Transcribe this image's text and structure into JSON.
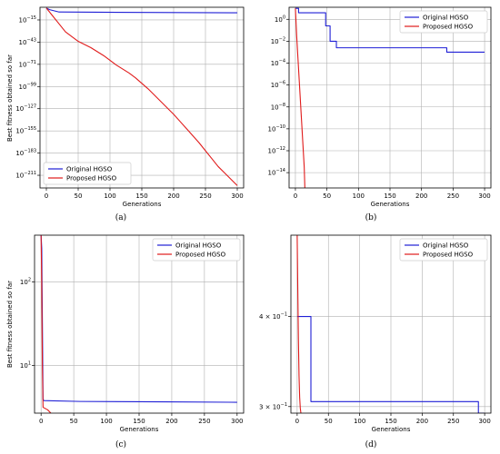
{
  "figure": {
    "captions": [
      "(a)",
      "(b)",
      "(c)",
      "(d)"
    ]
  },
  "chart_data": [
    {
      "type": "line",
      "panel": "a",
      "xlabel": "Generations",
      "ylabel": "Best fitness obtained so far",
      "log_y": true,
      "grid": true,
      "legend_position": "bottom-left",
      "xlim": [
        -10,
        310
      ],
      "ylim": [
        -227,
        1
      ],
      "y_unit": "log10",
      "xticks": [
        0,
        50,
        100,
        150,
        200,
        250,
        300
      ],
      "yticks": [
        {
          "value": -15,
          "base": "10",
          "exp": "−15"
        },
        {
          "value": -43,
          "base": "10",
          "exp": "−43"
        },
        {
          "value": -71,
          "base": "10",
          "exp": "−71"
        },
        {
          "value": -99,
          "base": "10",
          "exp": "−99"
        },
        {
          "value": -127,
          "base": "10",
          "exp": "−127"
        },
        {
          "value": -155,
          "base": "10",
          "exp": "−155"
        },
        {
          "value": -183,
          "base": "10",
          "exp": "−183"
        },
        {
          "value": -211,
          "base": "10",
          "exp": "−211"
        }
      ],
      "series": [
        {
          "name": "Original HGSO",
          "color": "#1f1fd6",
          "step": false,
          "x": [
            0,
            5,
            10,
            20,
            300
          ],
          "y": [
            0,
            -2,
            -3,
            -5,
            -6
          ]
        },
        {
          "name": "Proposed HGSO",
          "color": "#e01b1b",
          "step": false,
          "x": [
            0,
            10,
            20,
            30,
            40,
            50,
            60,
            70,
            80,
            90,
            100,
            110,
            120,
            130,
            140,
            150,
            160,
            170,
            180,
            190,
            200,
            210,
            220,
            230,
            240,
            250,
            260,
            270,
            280,
            290,
            300
          ],
          "y": [
            0,
            -10,
            -20,
            -30,
            -36,
            -42,
            -46,
            -50,
            -55,
            -60,
            -66,
            -72,
            -77,
            -82,
            -88,
            -95,
            -102,
            -110,
            -118,
            -126,
            -134,
            -143,
            -152,
            -161,
            -170,
            -180,
            -190,
            -200,
            -208,
            -216,
            -224
          ]
        }
      ]
    },
    {
      "type": "line",
      "panel": "b",
      "xlabel": "Generations",
      "ylabel": "",
      "log_y": true,
      "grid": true,
      "legend_position": "top-right",
      "xlim": [
        -10,
        310
      ],
      "ylim": [
        -15.4,
        1.1
      ],
      "y_unit": "log10",
      "xticks": [
        0,
        50,
        100,
        150,
        200,
        250,
        300
      ],
      "yticks": [
        {
          "value": 0,
          "base": "10",
          "exp": "0"
        },
        {
          "value": -2,
          "base": "10",
          "exp": "−2"
        },
        {
          "value": -4,
          "base": "10",
          "exp": "−4"
        },
        {
          "value": -6,
          "base": "10",
          "exp": "−6"
        },
        {
          "value": -8,
          "base": "10",
          "exp": "−8"
        },
        {
          "value": -10,
          "base": "10",
          "exp": "−10"
        },
        {
          "value": -12,
          "base": "10",
          "exp": "−12"
        },
        {
          "value": -14,
          "base": "10",
          "exp": "−14"
        }
      ],
      "series": [
        {
          "name": "Original HGSO",
          "color": "#1f1fd6",
          "step": true,
          "x": [
            0,
            5,
            48,
            55,
            65,
            240,
            300
          ],
          "y": [
            1.0,
            0.6,
            -0.6,
            -2.0,
            -2.6,
            -3.0,
            -3.0
          ]
        },
        {
          "name": "Proposed HGSO",
          "color": "#e01b1b",
          "step": false,
          "x": [
            0,
            2,
            4,
            6,
            8,
            10,
            12,
            14,
            15
          ],
          "y": [
            1.0,
            -1.5,
            -3.5,
            -5.5,
            -7.5,
            -9.5,
            -11.5,
            -13.5,
            -15.4
          ]
        }
      ]
    },
    {
      "type": "line",
      "panel": "c",
      "xlabel": "Generations",
      "ylabel": "Best fitness obtained so far",
      "log_y": true,
      "grid": true,
      "legend_position": "top-right",
      "xlim": [
        -10,
        310
      ],
      "ylim": [
        0.43,
        2.56
      ],
      "y_unit": "log10",
      "xticks": [
        0,
        50,
        100,
        150,
        200,
        250,
        300
      ],
      "yticks": [
        {
          "value": 1,
          "base": "10",
          "exp": "1"
        },
        {
          "value": 2,
          "base": "10",
          "exp": "2"
        }
      ],
      "series": [
        {
          "name": "Original HGSO",
          "color": "#1f1fd6",
          "step": false,
          "x": [
            0,
            1,
            2,
            3,
            4,
            60,
            190,
            300
          ],
          "y": [
            2.56,
            2.4,
            1.5,
            0.6,
            0.58,
            0.57,
            0.565,
            0.56
          ]
        },
        {
          "name": "Proposed HGSO",
          "color": "#e01b1b",
          "step": false,
          "x": [
            0,
            1,
            2,
            3,
            10,
            15
          ],
          "y": [
            2.56,
            2.0,
            1.0,
            0.5,
            0.47,
            0.43
          ]
        }
      ]
    },
    {
      "type": "line",
      "panel": "d",
      "xlabel": "Generations",
      "ylabel": "",
      "log_y": true,
      "grid": true,
      "legend_position": "top-right",
      "xlim": [
        -10,
        310
      ],
      "ylim": [
        -0.532,
        -0.285
      ],
      "y_unit": "log10",
      "xticks": [
        0,
        50,
        100,
        150,
        200,
        250,
        300
      ],
      "yticks": [
        {
          "value": -0.3979,
          "base": "4 × 10",
          "exp": "−1"
        },
        {
          "value": -0.5229,
          "base": "3 × 10",
          "exp": "−1"
        }
      ],
      "series": [
        {
          "name": "Original HGSO",
          "color": "#1f1fd6",
          "step": true,
          "x": [
            0,
            22,
            290,
            300
          ],
          "y": [
            -0.3979,
            -0.516,
            -0.532,
            -0.532
          ]
        },
        {
          "name": "Proposed HGSO",
          "color": "#e01b1b",
          "step": false,
          "x": [
            0,
            1,
            2,
            3,
            4,
            5,
            6
          ],
          "y": [
            -0.285,
            -0.36,
            -0.43,
            -0.48,
            -0.51,
            -0.525,
            -0.532
          ]
        }
      ]
    }
  ]
}
